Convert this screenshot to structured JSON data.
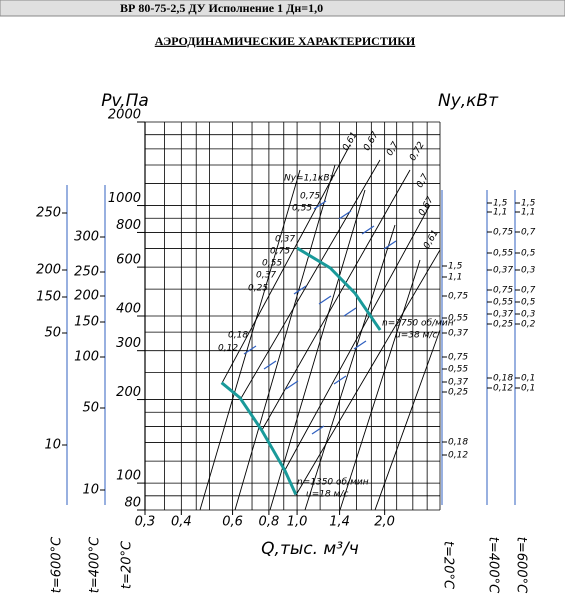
{
  "header": "ВР 80-75-2,5 ДУ Исполнение 1 Дн=1,0",
  "chart_data": {
    "type": "line",
    "title": "АЭРОДИНАМИЧЕСКИЕ ХАРАКТЕРИСТИКИ",
    "ylabel": "Pv,Па",
    "y2label": "Nу,кВт",
    "xlabel": "Q,тыс. м³/ч",
    "log_x": true,
    "log_y": true,
    "xlim": [
      0.3,
      3.1
    ],
    "ylim": [
      80,
      2000
    ],
    "xticks": [
      {
        "value": 0.3,
        "label": "0,3"
      },
      {
        "value": 0.4,
        "label": "0,4"
      },
      {
        "value": 0.6,
        "label": "0,6"
      },
      {
        "value": 0.8,
        "label": "0,8"
      },
      {
        "value": 1.0,
        "label": "1,0"
      },
      {
        "value": 1.4,
        "label": "1,4"
      },
      {
        "value": 2.0,
        "label": "2,0"
      }
    ],
    "yticks": [
      80,
      100,
      200,
      300,
      400,
      600,
      800,
      1000,
      2000
    ],
    "xgrid": [
      0.3,
      0.35,
      0.4,
      0.45,
      0.5,
      0.6,
      0.7,
      0.8,
      0.9,
      1.0,
      1.2,
      1.4,
      1.6,
      1.8,
      2.0,
      2.2,
      2.5,
      2.8,
      3.1
    ],
    "ygrid": [
      80,
      90,
      100,
      120,
      140,
      160,
      180,
      200,
      250,
      300,
      350,
      400,
      500,
      600,
      700,
      800,
      900,
      1000,
      1200,
      1400,
      1600,
      1800,
      2000
    ],
    "grid_color": "#000000",
    "series": [
      {
        "color": "#1a9a9a",
        "x": [
          1.0,
          1.3,
          1.58,
          1.93
        ],
        "values": [
          703,
          596,
          484,
          356
        ]
      },
      {
        "color": "#1a9a9a",
        "x": [
          0.55,
          0.636,
          0.756,
          0.908,
          0.99
        ],
        "values": [
          230,
          203,
          155,
          111,
          91
        ]
      }
    ],
    "annotations": [
      "Nу=1,1кВт",
      "0,75",
      "0,55",
      "0,37",
      "0,75",
      "0,55",
      "0,37",
      "0,25",
      "0,18",
      "0,12",
      "n=2750 об/мин",
      "u=38 м/с",
      "n=1350 об/мин",
      "u=18 м/с",
      "0,61",
      "0,67",
      "0,7",
      "0,72",
      "0,7",
      "0,67",
      "0,61"
    ],
    "left_scales": [
      {
        "label": "t=600°C",
        "ticks": [
          "250",
          "200",
          "150",
          "50",
          "10"
        ]
      },
      {
        "label": "t=400°C",
        "ticks": [
          "300",
          "250",
          "200",
          "150",
          "100",
          "50",
          "10"
        ]
      },
      {
        "label": "t=20°C"
      }
    ],
    "right_scales": [
      {
        "label": "t=20°C",
        "ticks": [
          "1,5",
          "1,1",
          "0,75",
          "0,55",
          "0,37",
          "0,75",
          "0,55",
          "0,37",
          "0,25",
          "0,18",
          "0,12"
        ]
      },
      {
        "label": "t=400°C",
        "ticks": [
          "1,5",
          "1,1",
          "0,75",
          "0,55",
          "0,37",
          "0,75",
          "0,55",
          "0,37",
          "0,25",
          "0,18",
          "0,12"
        ]
      },
      {
        "label": "t=600°C",
        "ticks": [
          "1,5",
          "1,1",
          "0,7",
          "0,5",
          "0,3",
          "0,7",
          "0,5",
          "0,3",
          "0,2",
          "0,1",
          "0,1"
        ]
      }
    ]
  }
}
